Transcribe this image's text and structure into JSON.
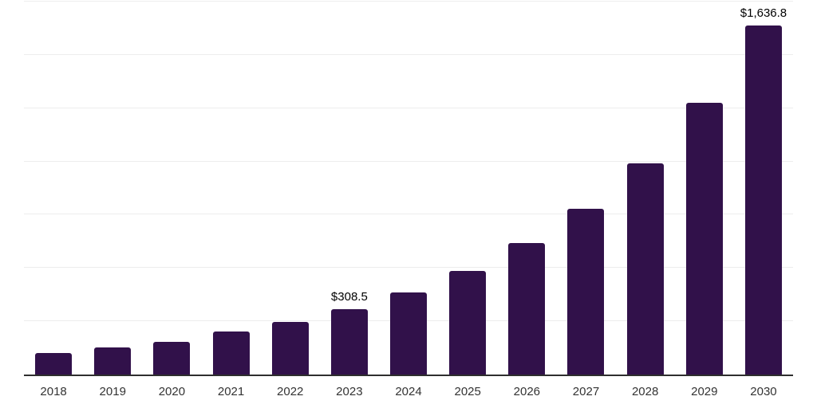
{
  "chart_data": {
    "type": "bar",
    "title": "",
    "xlabel": "",
    "ylabel": "",
    "categories": [
      "2018",
      "2019",
      "2020",
      "2021",
      "2022",
      "2023",
      "2024",
      "2025",
      "2026",
      "2027",
      "2028",
      "2029",
      "2030"
    ],
    "values": [
      100,
      127,
      153,
      201,
      248,
      308.5,
      385,
      486,
      617,
      778,
      990,
      1275,
      1636.8
    ],
    "data_labels": [
      null,
      null,
      null,
      null,
      null,
      "$308.5",
      null,
      null,
      null,
      null,
      null,
      null,
      "$1,636.8"
    ],
    "ylim": [
      0,
      1750
    ],
    "gridline_step": 250,
    "grid": "horizontal",
    "legend_position": "none",
    "colors": {
      "bar": "#31114A",
      "gridline": "#EDEDED",
      "axis_line": "#2E2E2E",
      "tick_label": "#333333",
      "data_label": "#000000",
      "background": "#FFFFFF"
    }
  }
}
